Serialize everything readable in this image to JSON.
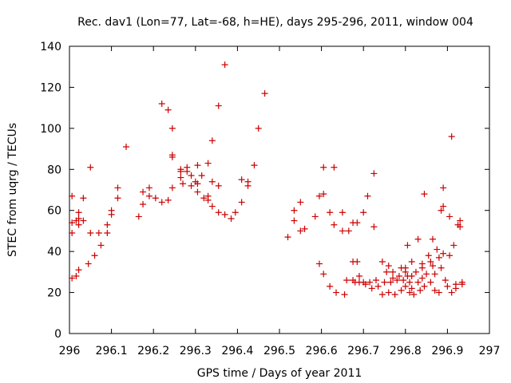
{
  "chart_data": {
    "type": "scatter",
    "title": "Rec. dav1 (Lon=77, Lat=-68, h=HE), days 295-296, 2011, window 004",
    "xlabel": "GPS time / Days of year 2011",
    "ylabel": "STEC from uqrg / TECUs",
    "xlim": [
      296,
      297
    ],
    "ylim": [
      0,
      140
    ],
    "xticks": [
      296,
      296.1,
      296.2,
      296.3,
      296.4,
      296.5,
      296.6,
      296.7,
      296.8,
      296.9,
      297
    ],
    "yticks": [
      0,
      20,
      40,
      60,
      80,
      100,
      120,
      140
    ],
    "xtick_labels": [
      "296",
      "296.1",
      "296.2",
      "296.3",
      "296.4",
      "296.5",
      "296.6",
      "296.7",
      "296.8",
      "296.9",
      "297"
    ],
    "ytick_labels": [
      "0",
      "20",
      "40",
      "60",
      "80",
      "100",
      "120",
      "140"
    ],
    "grid": false,
    "marker": "+",
    "colors": {
      "marker": "#cc0000",
      "axis": "#000000"
    },
    "points": [
      [
        296.006,
        67
      ],
      [
        296.006,
        54
      ],
      [
        296.006,
        49
      ],
      [
        296.006,
        27
      ],
      [
        296.016,
        55
      ],
      [
        296.016,
        28
      ],
      [
        296.022,
        59
      ],
      [
        296.022,
        56
      ],
      [
        296.022,
        53
      ],
      [
        296.022,
        31
      ],
      [
        296.033,
        66
      ],
      [
        296.033,
        55
      ],
      [
        296.045,
        34
      ],
      [
        296.05,
        81
      ],
      [
        296.05,
        49
      ],
      [
        296.06,
        38
      ],
      [
        296.07,
        49
      ],
      [
        296.075,
        43
      ],
      [
        296.09,
        53
      ],
      [
        296.09,
        49
      ],
      [
        296.1,
        58
      ],
      [
        296.1,
        60
      ],
      [
        296.115,
        71
      ],
      [
        296.115,
        66
      ],
      [
        296.135,
        91
      ],
      [
        296.165,
        57
      ],
      [
        296.175,
        63
      ],
      [
        296.175,
        69
      ],
      [
        296.19,
        71
      ],
      [
        296.19,
        67
      ],
      [
        296.205,
        66
      ],
      [
        296.22,
        112
      ],
      [
        296.22,
        64
      ],
      [
        296.235,
        109
      ],
      [
        296.235,
        65
      ],
      [
        296.245,
        100
      ],
      [
        296.245,
        87
      ],
      [
        296.245,
        86
      ],
      [
        296.245,
        71
      ],
      [
        296.265,
        80
      ],
      [
        296.265,
        79
      ],
      [
        296.265,
        76
      ],
      [
        296.27,
        73
      ],
      [
        296.28,
        81
      ],
      [
        296.28,
        79
      ],
      [
        296.29,
        77
      ],
      [
        296.29,
        72
      ],
      [
        296.3,
        74
      ],
      [
        296.305,
        82
      ],
      [
        296.305,
        69
      ],
      [
        296.305,
        73
      ],
      [
        296.315,
        77
      ],
      [
        296.32,
        66
      ],
      [
        296.33,
        83
      ],
      [
        296.33,
        67
      ],
      [
        296.33,
        65
      ],
      [
        296.34,
        94
      ],
      [
        296.34,
        74
      ],
      [
        296.34,
        62
      ],
      [
        296.355,
        111
      ],
      [
        296.355,
        72
      ],
      [
        296.355,
        59
      ],
      [
        296.37,
        131
      ],
      [
        296.37,
        58
      ],
      [
        296.385,
        56
      ],
      [
        296.395,
        59
      ],
      [
        296.41,
        75
      ],
      [
        296.41,
        64
      ],
      [
        296.425,
        74
      ],
      [
        296.425,
        72
      ],
      [
        296.44,
        82
      ],
      [
        296.45,
        100
      ],
      [
        296.465,
        117
      ],
      [
        296.52,
        47
      ],
      [
        296.535,
        60
      ],
      [
        296.535,
        55
      ],
      [
        296.55,
        64
      ],
      [
        296.55,
        50
      ],
      [
        296.56,
        51
      ],
      [
        296.585,
        57
      ],
      [
        296.595,
        67
      ],
      [
        296.595,
        34
      ],
      [
        296.605,
        81
      ],
      [
        296.605,
        68
      ],
      [
        296.605,
        29
      ],
      [
        296.62,
        59
      ],
      [
        296.62,
        23
      ],
      [
        296.63,
        81
      ],
      [
        296.63,
        53
      ],
      [
        296.635,
        20
      ],
      [
        296.65,
        59
      ],
      [
        296.65,
        50
      ],
      [
        296.655,
        19
      ],
      [
        296.66,
        26
      ],
      [
        296.665,
        50
      ],
      [
        296.675,
        54
      ],
      [
        296.675,
        35
      ],
      [
        296.675,
        26
      ],
      [
        296.68,
        25
      ],
      [
        296.685,
        54
      ],
      [
        296.685,
        35
      ],
      [
        296.69,
        28
      ],
      [
        296.69,
        25
      ],
      [
        296.7,
        59
      ],
      [
        296.7,
        25
      ],
      [
        296.705,
        24
      ],
      [
        296.71,
        67
      ],
      [
        296.715,
        25
      ],
      [
        296.72,
        22
      ],
      [
        296.725,
        78
      ],
      [
        296.725,
        52
      ],
      [
        296.73,
        26
      ],
      [
        296.735,
        23
      ],
      [
        296.745,
        35
      ],
      [
        296.745,
        19
      ],
      [
        296.75,
        25
      ],
      [
        296.755,
        30
      ],
      [
        296.76,
        33
      ],
      [
        296.76,
        20
      ],
      [
        296.765,
        25
      ],
      [
        296.77,
        30
      ],
      [
        296.77,
        27
      ],
      [
        296.775,
        19
      ],
      [
        296.78,
        26
      ],
      [
        296.785,
        28
      ],
      [
        296.79,
        32
      ],
      [
        296.79,
        21
      ],
      [
        296.795,
        26
      ],
      [
        296.8,
        32
      ],
      [
        296.8,
        30
      ],
      [
        296.8,
        23
      ],
      [
        296.805,
        43
      ],
      [
        296.805,
        28
      ],
      [
        296.81,
        25
      ],
      [
        296.81,
        20
      ],
      [
        296.815,
        35
      ],
      [
        296.815,
        28
      ],
      [
        296.815,
        22
      ],
      [
        296.82,
        19
      ],
      [
        296.825,
        30
      ],
      [
        296.83,
        46
      ],
      [
        296.83,
        25
      ],
      [
        296.835,
        21
      ],
      [
        296.84,
        34
      ],
      [
        296.84,
        32
      ],
      [
        296.84,
        27
      ],
      [
        296.845,
        68
      ],
      [
        296.845,
        23
      ],
      [
        296.85,
        29
      ],
      [
        296.855,
        38
      ],
      [
        296.86,
        35
      ],
      [
        296.86,
        25
      ],
      [
        296.865,
        46
      ],
      [
        296.865,
        33
      ],
      [
        296.87,
        29
      ],
      [
        296.87,
        21
      ],
      [
        296.875,
        41
      ],
      [
        296.88,
        37
      ],
      [
        296.88,
        20
      ],
      [
        296.885,
        60
      ],
      [
        296.885,
        32
      ],
      [
        296.89,
        71
      ],
      [
        296.89,
        62
      ],
      [
        296.89,
        39
      ],
      [
        296.895,
        26
      ],
      [
        296.9,
        23
      ],
      [
        296.905,
        57
      ],
      [
        296.905,
        38
      ],
      [
        296.91,
        96
      ],
      [
        296.91,
        20
      ],
      [
        296.915,
        43
      ],
      [
        296.92,
        24
      ],
      [
        296.92,
        22
      ],
      [
        296.925,
        53
      ],
      [
        296.93,
        55
      ],
      [
        296.93,
        52
      ],
      [
        296.935,
        25
      ],
      [
        296.935,
        24
      ]
    ]
  }
}
